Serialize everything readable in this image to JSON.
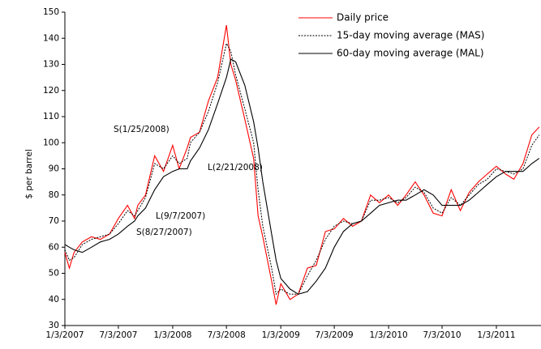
{
  "chart_data": {
    "type": "line",
    "x": [
      "2007-01-03",
      "2007-01-18",
      "2007-02-03",
      "2007-03-03",
      "2007-04-03",
      "2007-05-03",
      "2007-06-03",
      "2007-07-03",
      "2007-08-03",
      "2007-08-27",
      "2007-09-07",
      "2007-10-03",
      "2007-11-03",
      "2007-12-03",
      "2008-01-03",
      "2008-01-25",
      "2008-02-21",
      "2008-03-03",
      "2008-04-03",
      "2008-05-03",
      "2008-06-03",
      "2008-07-03",
      "2008-07-18",
      "2008-08-03",
      "2008-09-03",
      "2008-10-03",
      "2008-10-18",
      "2008-11-03",
      "2008-12-03",
      "2008-12-18",
      "2009-01-03",
      "2009-02-03",
      "2009-03-03",
      "2009-04-03",
      "2009-05-03",
      "2009-06-03",
      "2009-07-03",
      "2009-08-03",
      "2009-09-03",
      "2009-10-03",
      "2009-11-03",
      "2009-12-03",
      "2010-01-03",
      "2010-02-03",
      "2010-03-03",
      "2010-04-03",
      "2010-05-03",
      "2010-06-03",
      "2010-07-03",
      "2010-08-03",
      "2010-09-03",
      "2010-10-03",
      "2010-11-03",
      "2010-12-03",
      "2011-01-03",
      "2011-02-03",
      "2011-03-03",
      "2011-04-03",
      "2011-05-03",
      "2011-05-28"
    ],
    "series": [
      {
        "name": "Daily price",
        "color": "#ff0000",
        "dash": false,
        "values": [
          58,
          52,
          58,
          62,
          64,
          63,
          65,
          71,
          76,
          71,
          76,
          80,
          95,
          89,
          99,
          90,
          98,
          102,
          104,
          116,
          125,
          145,
          130,
          124,
          109,
          94,
          72,
          64,
          47,
          38,
          46,
          40,
          42,
          52,
          53,
          66,
          67,
          71,
          68,
          70,
          80,
          77,
          80,
          76,
          80,
          85,
          80,
          73,
          72,
          82,
          74,
          81,
          85,
          88,
          91,
          88,
          86,
          92,
          103,
          106
        ]
      },
      {
        "name": "15-day moving average (MAS)",
        "color": "#000000",
        "dash": true,
        "values": [
          59,
          55,
          56,
          61,
          63,
          64,
          65,
          69,
          74,
          72,
          74,
          79,
          92,
          90,
          95,
          92,
          94,
          100,
          104,
          112,
          123,
          138,
          135,
          126,
          113,
          100,
          82,
          68,
          52,
          42,
          44,
          42,
          42,
          49,
          55,
          63,
          68,
          70,
          69,
          70,
          78,
          78,
          79,
          77,
          79,
          83,
          81,
          75,
          73,
          79,
          76,
          80,
          84,
          86,
          90,
          89,
          88,
          90,
          99,
          103
        ]
      },
      {
        "name": "60-day moving average (MAL)",
        "color": "#000000",
        "dash": false,
        "values": [
          61,
          60,
          59,
          58,
          60,
          62,
          63,
          65,
          68,
          70,
          72,
          75,
          82,
          87,
          89,
          90,
          90,
          93,
          98,
          105,
          115,
          125,
          132,
          131,
          122,
          108,
          98,
          85,
          65,
          55,
          48,
          44,
          42,
          43,
          47,
          52,
          60,
          66,
          69,
          70,
          73,
          76,
          77,
          78,
          78,
          80,
          82,
          80,
          76,
          76,
          76,
          78,
          81,
          84,
          87,
          89,
          89,
          89,
          92,
          94
        ]
      }
    ],
    "y_label": "$ per barrel",
    "annotations": [
      "S(1/25/2008)",
      "L(2/21/2008)",
      "L(9/7/2007)",
      "S(8/27/2007)"
    ],
    "xlim": [
      "2007-01-03",
      "2011-06-03"
    ],
    "xticks": [
      {
        "value": "2007-01-03",
        "label": "1/3/2007"
      },
      {
        "value": "2007-07-03",
        "label": "7/3/2007"
      },
      {
        "value": "2008-01-03",
        "label": "1/3/2008"
      },
      {
        "value": "2008-07-03",
        "label": "7/3/2008"
      },
      {
        "value": "2009-01-03",
        "label": "1/3/2009"
      },
      {
        "value": "2009-07-03",
        "label": "7/3/2009"
      },
      {
        "value": "2010-01-03",
        "label": "1/3/2010"
      },
      {
        "value": "2010-07-03",
        "label": "7/3/2010"
      },
      {
        "value": "2011-01-03",
        "label": "1/3/2011"
      }
    ],
    "ylim": [
      30,
      150
    ],
    "yticks": [
      30,
      40,
      50,
      60,
      70,
      80,
      90,
      100,
      110,
      120,
      130,
      140,
      150
    ],
    "grid": false,
    "legend": "upper right"
  }
}
